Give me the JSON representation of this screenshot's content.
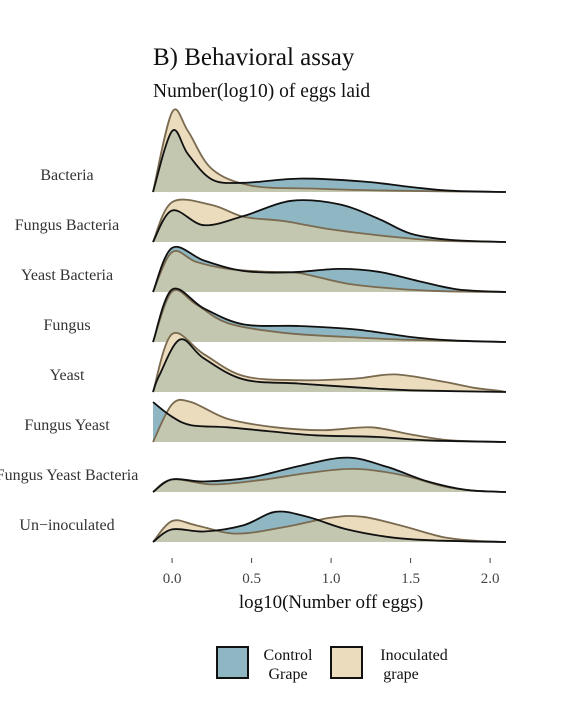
{
  "chart_data": {
    "type": "ridgeline-density",
    "title": "B) Behavioral assay",
    "subtitle": "Number(log10) of eggs laid",
    "xlabel": "log10(Number off eggs)",
    "ylabel": "",
    "xlim": [
      -0.12,
      2.1
    ],
    "xticks": [
      {
        "value": 0.0,
        "label": "0.0"
      },
      {
        "value": 0.5,
        "label": "0.5"
      },
      {
        "value": 1.0,
        "label": "1.0"
      },
      {
        "value": 1.5,
        "label": "1.5"
      },
      {
        "value": 2.0,
        "label": "2.0"
      }
    ],
    "categories": [
      "Bacteria",
      "Fungus Bacteria",
      "Yeast Bacteria",
      "Fungus",
      "Yeast",
      "Fungus Yeast",
      "Fungus Yeast Bacteria",
      "Un−inoculated"
    ],
    "colors": {
      "Control Grape": "#8fb7c3",
      "Inoculated grape": "#ecdcbe",
      "overlap": "#c3c7b0",
      "control_line": "#111111",
      "inoculated_line": "#7a6a50"
    },
    "legend": {
      "position": "bottom",
      "items": [
        {
          "key": "control",
          "line1": "Control",
          "line2": "Grape"
        },
        {
          "key": "inoculated",
          "line1": "Inoculated",
          "line2": "grape"
        }
      ]
    },
    "series": [
      {
        "name": "Control Grape",
        "densities": [
          [
            [
              0.0,
              1.45
            ],
            [
              0.1,
              0.9
            ],
            [
              0.25,
              0.3
            ],
            [
              0.45,
              0.22
            ],
            [
              0.8,
              0.32
            ],
            [
              1.2,
              0.25
            ],
            [
              1.5,
              0.12
            ],
            [
              1.75,
              0.03
            ]
          ],
          [
            [
              0.0,
              0.75
            ],
            [
              0.2,
              0.4
            ],
            [
              0.45,
              0.62
            ],
            [
              0.75,
              0.98
            ],
            [
              1.05,
              0.9
            ],
            [
              1.3,
              0.55
            ],
            [
              1.5,
              0.2
            ],
            [
              1.75,
              0.05
            ]
          ],
          [
            [
              0.0,
              1.05
            ],
            [
              0.2,
              0.75
            ],
            [
              0.45,
              0.5
            ],
            [
              0.75,
              0.47
            ],
            [
              1.05,
              0.55
            ],
            [
              1.3,
              0.48
            ],
            [
              1.55,
              0.26
            ],
            [
              1.8,
              0.06
            ]
          ],
          [
            [
              0.0,
              1.25
            ],
            [
              0.2,
              0.8
            ],
            [
              0.45,
              0.42
            ],
            [
              0.8,
              0.38
            ],
            [
              1.15,
              0.3
            ],
            [
              1.5,
              0.12
            ],
            [
              1.75,
              0.04
            ]
          ],
          [
            [
              -0.08,
              0.4
            ],
            [
              0.05,
              1.25
            ],
            [
              0.2,
              0.8
            ],
            [
              0.45,
              0.3
            ],
            [
              0.8,
              0.2
            ],
            [
              1.2,
              0.1
            ],
            [
              1.5,
              0.04
            ]
          ],
          [
            [
              -0.12,
              0.95
            ],
            [
              0.0,
              0.6
            ],
            [
              0.12,
              0.4
            ],
            [
              0.35,
              0.35
            ],
            [
              0.6,
              0.26
            ],
            [
              0.9,
              0.16
            ],
            [
              1.3,
              0.12
            ],
            [
              1.6,
              0.04
            ]
          ],
          [
            [
              0.0,
              0.3
            ],
            [
              0.2,
              0.25
            ],
            [
              0.5,
              0.35
            ],
            [
              0.8,
              0.62
            ],
            [
              1.1,
              0.82
            ],
            [
              1.35,
              0.6
            ],
            [
              1.6,
              0.26
            ],
            [
              1.85,
              0.05
            ]
          ],
          [
            [
              0.0,
              0.3
            ],
            [
              0.2,
              0.25
            ],
            [
              0.45,
              0.4
            ],
            [
              0.65,
              0.72
            ],
            [
              0.85,
              0.6
            ],
            [
              1.1,
              0.3
            ],
            [
              1.4,
              0.1
            ],
            [
              1.7,
              0.03
            ]
          ]
        ]
      },
      {
        "name": "Inoculated grape",
        "densities": [
          [
            [
              0.0,
              1.9
            ],
            [
              0.1,
              1.45
            ],
            [
              0.25,
              0.55
            ],
            [
              0.5,
              0.15
            ],
            [
              0.9,
              0.08
            ],
            [
              1.4,
              0.03
            ]
          ],
          [
            [
              0.0,
              0.95
            ],
            [
              0.25,
              0.88
            ],
            [
              0.45,
              0.6
            ],
            [
              0.7,
              0.5
            ],
            [
              1.0,
              0.3
            ],
            [
              1.4,
              0.12
            ],
            [
              1.7,
              0.03
            ]
          ],
          [
            [
              0.0,
              0.95
            ],
            [
              0.15,
              0.72
            ],
            [
              0.35,
              0.55
            ],
            [
              0.6,
              0.48
            ],
            [
              0.8,
              0.45
            ],
            [
              1.1,
              0.2
            ],
            [
              1.4,
              0.08
            ],
            [
              1.7,
              0.02
            ]
          ],
          [
            [
              0.0,
              1.2
            ],
            [
              0.15,
              0.9
            ],
            [
              0.35,
              0.45
            ],
            [
              0.7,
              0.22
            ],
            [
              1.1,
              0.12
            ],
            [
              1.5,
              0.05
            ]
          ],
          [
            [
              0.0,
              1.38
            ],
            [
              0.2,
              0.9
            ],
            [
              0.45,
              0.38
            ],
            [
              0.8,
              0.28
            ],
            [
              1.15,
              0.32
            ],
            [
              1.4,
              0.42
            ],
            [
              1.7,
              0.25
            ],
            [
              1.9,
              0.1
            ],
            [
              2.05,
              0.03
            ]
          ],
          [
            [
              0.0,
              0.9
            ],
            [
              0.12,
              0.95
            ],
            [
              0.35,
              0.55
            ],
            [
              0.65,
              0.35
            ],
            [
              0.95,
              0.28
            ],
            [
              1.25,
              0.35
            ],
            [
              1.5,
              0.18
            ],
            [
              1.75,
              0.04
            ]
          ],
          [
            [
              0.0,
              0.3
            ],
            [
              0.25,
              0.18
            ],
            [
              0.55,
              0.28
            ],
            [
              0.85,
              0.45
            ],
            [
              1.15,
              0.55
            ],
            [
              1.45,
              0.4
            ],
            [
              1.7,
              0.14
            ],
            [
              1.9,
              0.03
            ]
          ],
          [
            [
              0.0,
              0.5
            ],
            [
              0.15,
              0.4
            ],
            [
              0.4,
              0.2
            ],
            [
              0.7,
              0.35
            ],
            [
              1.0,
              0.58
            ],
            [
              1.2,
              0.6
            ],
            [
              1.45,
              0.38
            ],
            [
              1.7,
              0.12
            ],
            [
              1.9,
              0.03
            ]
          ]
        ]
      }
    ]
  }
}
